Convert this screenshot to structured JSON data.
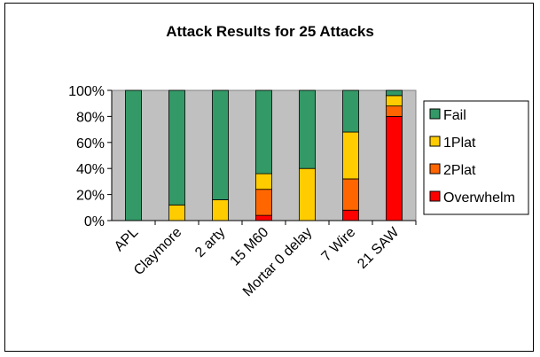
{
  "chart_data": {
    "type": "bar",
    "stacked": "percent",
    "title": "Attack Results for 25 Attacks",
    "xlabel": "",
    "ylabel": "",
    "ylim": [
      0,
      100
    ],
    "y_ticks": [
      "0%",
      "20%",
      "40%",
      "60%",
      "80%",
      "100%"
    ],
    "categories": [
      "APL",
      "Claymore",
      "2 arty",
      "15 M60",
      "Mortar 0 delay",
      "7 Wire",
      "21 SAW"
    ],
    "grid": false,
    "legend_position": "right",
    "series": [
      {
        "name": "Overwhelm",
        "color": "#ff0000",
        "values": [
          0,
          0,
          0,
          4,
          0,
          8,
          80
        ]
      },
      {
        "name": "2Plat",
        "color": "#ff6600",
        "values": [
          0,
          0,
          0,
          20,
          0,
          24,
          8
        ]
      },
      {
        "name": "1Plat",
        "color": "#ffcc00",
        "values": [
          0,
          12,
          16,
          12,
          40,
          36,
          8
        ]
      },
      {
        "name": "Fail",
        "color": "#339966",
        "values": [
          100,
          88,
          84,
          64,
          60,
          32,
          4
        ]
      }
    ],
    "legend_order": [
      "Fail",
      "1Plat",
      "2Plat",
      "Overwhelm"
    ],
    "plot_background": "#c0c0c0"
  }
}
